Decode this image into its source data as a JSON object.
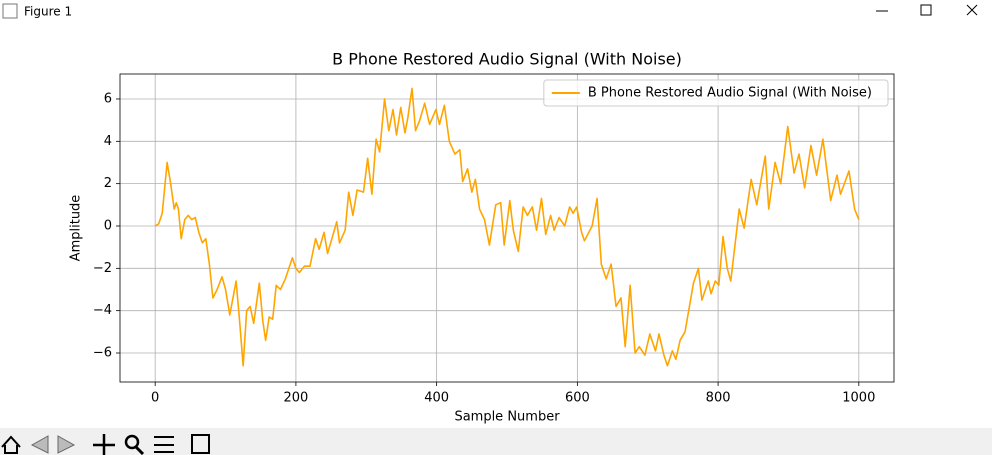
{
  "window": {
    "title": "Figure 1"
  },
  "chart_data": {
    "type": "line",
    "title": "B Phone Restored Audio Signal (With Noise)",
    "xlabel": "Sample Number",
    "ylabel": "Amplitude",
    "x": [
      0,
      5,
      10,
      17,
      22,
      27,
      30,
      33,
      37,
      42,
      47,
      52,
      57,
      62,
      67,
      72,
      77,
      82,
      88,
      95,
      100,
      106,
      110,
      115,
      120,
      125,
      130,
      135,
      140,
      148,
      153,
      157,
      162,
      167,
      172,
      178,
      185,
      195,
      200,
      205,
      212,
      220,
      228,
      233,
      240,
      245,
      252,
      258,
      262,
      270,
      275,
      281,
      287,
      296,
      302,
      308,
      314,
      319,
      326,
      332,
      338,
      343,
      349,
      355,
      359,
      365,
      370,
      376,
      383,
      390,
      399,
      404,
      411,
      418,
      426,
      433,
      437,
      444,
      450,
      455,
      461,
      468,
      475,
      484,
      491,
      496,
      504,
      509,
      516,
      523,
      529,
      536,
      542,
      549,
      555,
      562,
      567,
      574,
      582,
      589,
      594,
      599,
      606,
      610,
      621,
      628,
      634,
      641,
      648,
      655,
      662,
      668,
      675,
      682,
      688,
      696,
      703,
      711,
      716,
      723,
      728,
      735,
      740,
      746,
      753,
      765,
      772,
      777,
      786,
      790,
      796,
      801,
      807,
      813,
      818,
      824,
      830,
      837,
      847,
      855,
      867,
      872,
      881,
      889,
      899,
      908,
      915,
      923,
      932,
      940,
      949,
      960,
      969,
      974,
      986,
      994,
      1000
    ],
    "series": [
      {
        "name": "B Phone Restored Audio Signal (With Noise)",
        "color": "#ffa500",
        "values": [
          0,
          0.1,
          0.6,
          3.0,
          2.0,
          0.8,
          1.1,
          0.8,
          -0.6,
          0.3,
          0.5,
          0.3,
          0.4,
          -0.3,
          -0.8,
          -0.6,
          -1.8,
          -3.4,
          -3.0,
          -2.4,
          -3.0,
          -4.2,
          -3.5,
          -2.6,
          -4.5,
          -6.6,
          -4.0,
          -3.8,
          -4.6,
          -2.7,
          -4.5,
          -5.4,
          -4.3,
          -4.4,
          -2.8,
          -3.0,
          -2.5,
          -1.5,
          -2.0,
          -2.2,
          -1.9,
          -1.9,
          -0.6,
          -1.1,
          -0.3,
          -1.3,
          -0.5,
          0.2,
          -0.8,
          -0.2,
          1.6,
          0.5,
          1.7,
          1.6,
          3.2,
          1.5,
          4.1,
          3.5,
          6.0,
          4.5,
          5.5,
          4.3,
          5.6,
          4.4,
          5.1,
          6.5,
          4.5,
          5.0,
          5.8,
          4.8,
          5.5,
          4.8,
          5.7,
          4.0,
          3.4,
          3.6,
          2.1,
          2.7,
          1.6,
          2.2,
          0.8,
          0.3,
          -0.9,
          1.0,
          1.1,
          -0.9,
          1.2,
          -0.2,
          -1.2,
          0.9,
          0.5,
          0.9,
          -0.2,
          1.3,
          -0.4,
          0.5,
          -0.2,
          0.4,
          0.0,
          0.9,
          0.6,
          0.9,
          -0.3,
          -0.7,
          0.0,
          1.3,
          -1.8,
          -2.5,
          -1.8,
          -3.8,
          -3.4,
          -5.7,
          -2.8,
          -6.0,
          -5.7,
          -6.1,
          -5.1,
          -5.9,
          -5.1,
          -6.1,
          -6.6,
          -5.9,
          -6.3,
          -5.4,
          -5.0,
          -2.7,
          -2.0,
          -3.5,
          -2.6,
          -3.2,
          -2.6,
          -2.8,
          -0.5,
          -2.0,
          -2.6,
          -0.9,
          0.8,
          -0.1,
          2.2,
          1.0,
          3.3,
          0.8,
          3.0,
          2.0,
          4.7,
          2.5,
          3.4,
          1.8,
          3.8,
          2.4,
          4.1,
          1.2,
          2.4,
          1.5,
          2.6,
          0.8,
          0.3
        ]
      }
    ],
    "xlim": [
      -50,
      1050
    ],
    "ylim": [
      -7.37,
      7.18
    ],
    "xticks": [
      0,
      200,
      400,
      600,
      800,
      1000
    ],
    "yticks": [
      {
        "value": -6,
        "label": "−6"
      },
      {
        "value": -4,
        "label": "−4"
      },
      {
        "value": -2,
        "label": "−2"
      },
      0,
      2,
      4,
      6
    ],
    "grid": true,
    "legend": "upper right"
  }
}
